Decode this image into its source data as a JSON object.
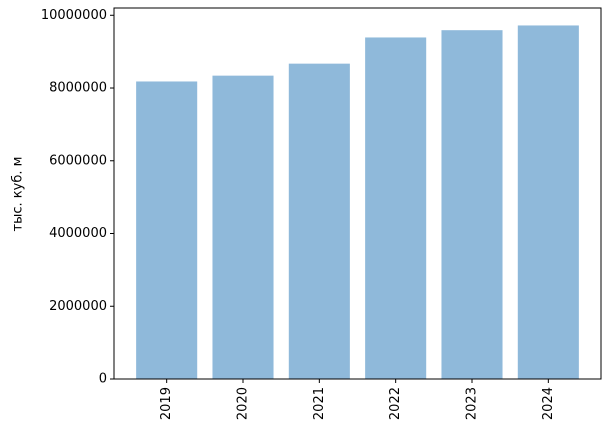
{
  "chart_data": {
    "type": "bar",
    "y_label": "тыс. куб. м",
    "categories": [
      "2019",
      "2020",
      "2021",
      "2022",
      "2023",
      "2024"
    ],
    "values": [
      8180000,
      8340000,
      8670000,
      9390000,
      9590000,
      9720000
    ],
    "color": "#8fb9da",
    "ylim": [
      0,
      10200000
    ],
    "yticks": [
      0,
      2000000,
      4000000,
      6000000,
      8000000,
      10000000
    ],
    "grid": false
  }
}
